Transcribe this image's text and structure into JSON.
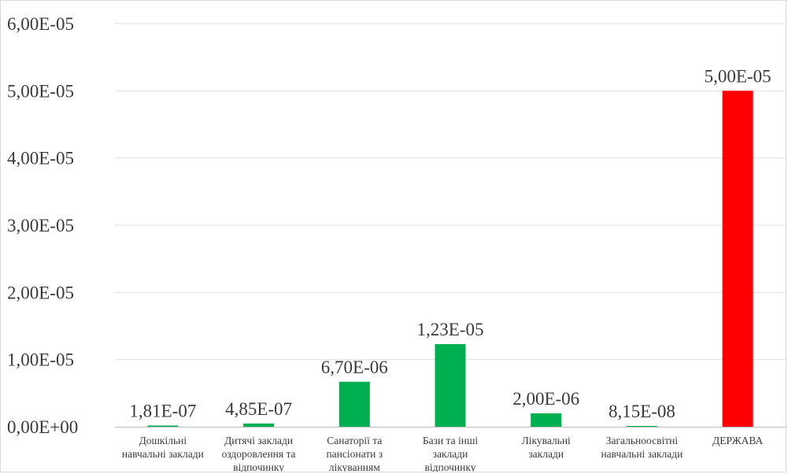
{
  "chart_data": {
    "type": "bar",
    "categories": [
      [
        "Дошкільні",
        "навчальні заклади"
      ],
      [
        "Дитячі заклади",
        "оздоровлення та",
        "відпочинку"
      ],
      [
        "Санаторії та",
        "пансіонати з",
        "лікуванням"
      ],
      [
        "Бази та інші",
        "заклади",
        "відпочинку"
      ],
      [
        "Лікувальні",
        "заклади"
      ],
      [
        "Загальноосвітні",
        "навчальні заклади"
      ],
      [
        "ДЕРЖАВА"
      ]
    ],
    "values": [
      1.81e-07,
      4.85e-07,
      6.7e-06,
      1.23e-05,
      2e-06,
      8.15e-08,
      5e-05
    ],
    "data_labels": [
      "1,81E-07",
      "4,85E-07",
      "6,70E-06",
      "1,23E-05",
      "2,00E-06",
      "8,15E-08",
      "5,00E-05"
    ],
    "bar_colors": [
      "#00b050",
      "#00b050",
      "#00b050",
      "#00b050",
      "#00b050",
      "#00b050",
      "#ff0000"
    ],
    "ylim": [
      0,
      6e-05
    ],
    "yticks": [
      0,
      1e-05,
      2e-05,
      3e-05,
      4e-05,
      5e-05,
      6e-05
    ],
    "ytick_labels": [
      "0,00E+00",
      "1,00E-05",
      "2,00E-05",
      "3,00E-05",
      "4,00E-05",
      "5,00E-05",
      "6,00E-05"
    ],
    "grid": true,
    "legend": "none",
    "title": "",
    "xlabel": "",
    "ylabel": ""
  }
}
